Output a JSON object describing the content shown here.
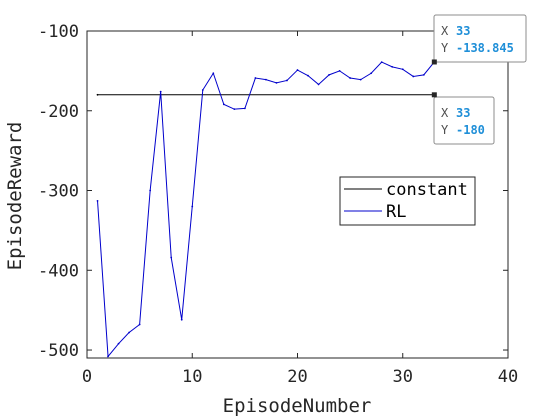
{
  "chart_data": {
    "type": "line",
    "title": "",
    "xlabel": "EpisodeNumber",
    "ylabel": "EpisodeReward",
    "xlim": [
      0,
      40
    ],
    "ylim": [
      -510,
      -100
    ],
    "xticks": [
      0,
      10,
      20,
      30,
      40
    ],
    "yticks": [
      -100,
      -200,
      -300,
      -400,
      -500
    ],
    "xtick_labels": [
      "0",
      "10",
      "20",
      "30",
      "40"
    ],
    "ytick_labels": [
      "-100",
      "-200",
      "-300",
      "-400",
      "-500"
    ],
    "grid": false,
    "legend_position": "middle-right",
    "series": [
      {
        "name": "constant",
        "color": "#000000",
        "x": [
          1,
          33
        ],
        "y": [
          -180,
          -180
        ]
      },
      {
        "name": "RL",
        "color": "#0000cc",
        "x": [
          1,
          2,
          3,
          4,
          5,
          6,
          7,
          8,
          9,
          10,
          11,
          12,
          13,
          14,
          15,
          16,
          17,
          18,
          19,
          20,
          21,
          22,
          23,
          24,
          25,
          26,
          27,
          28,
          29,
          30,
          31,
          32,
          33
        ],
        "y": [
          -313,
          -508,
          -492,
          -478,
          -468,
          -300,
          -176,
          -384,
          -462,
          -320,
          -174,
          -153,
          -192,
          -198,
          -197,
          -159,
          -161,
          -165,
          -162,
          -149,
          -156,
          -167,
          -155,
          -150,
          -159,
          -161,
          -153,
          -139,
          -145,
          -148,
          -157,
          -155,
          -138.845
        ]
      }
    ],
    "datatips": [
      {
        "x_key": "X",
        "x_value": "33",
        "y_key": "Y",
        "y_value": "-138.845",
        "data_x": 33,
        "data_y": -138.845
      },
      {
        "x_key": "X",
        "x_value": "33",
        "y_key": "Y",
        "y_value": "-180",
        "data_x": 33,
        "data_y": -180
      }
    ]
  }
}
